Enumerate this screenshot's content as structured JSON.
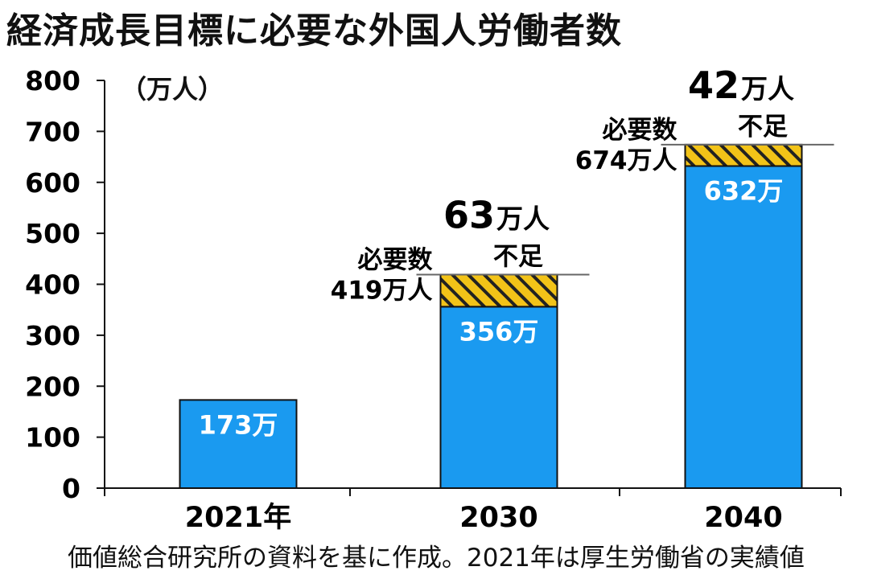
{
  "title": "経済成長目標に必要な外国人労働者数",
  "unit_label": "（万人）",
  "source": "価値総合研究所の資料を基に作成。2021年は厚生労働省の実績値",
  "colors": {
    "bar": "#1a9af0",
    "shortage_hatch": "#f2c318",
    "axis": "#111111"
  },
  "chart_data": {
    "type": "bar",
    "title": "経済成長目標に必要な外国人労働者数",
    "ylabel": "（万人）",
    "xlabel": "",
    "ylim": [
      0,
      800
    ],
    "yticks": [
      0,
      100,
      200,
      300,
      400,
      500,
      600,
      700,
      800
    ],
    "categories": [
      "2021年",
      "2030",
      "2040"
    ],
    "values": [
      173,
      356,
      632
    ],
    "value_labels": [
      "173万",
      "356万",
      "632万"
    ],
    "required": [
      null,
      419,
      674
    ],
    "required_labels": [
      null,
      [
        "必要数",
        "419万人"
      ],
      [
        "必要数",
        "674万人"
      ]
    ],
    "shortage": [
      null,
      63,
      42
    ],
    "shortage_number_labels": [
      null,
      "63",
      "42"
    ],
    "shortage_unit_labels": [
      null,
      "万人",
      "万人"
    ],
    "shortage_word_labels": [
      null,
      "不足",
      "不足"
    ]
  }
}
